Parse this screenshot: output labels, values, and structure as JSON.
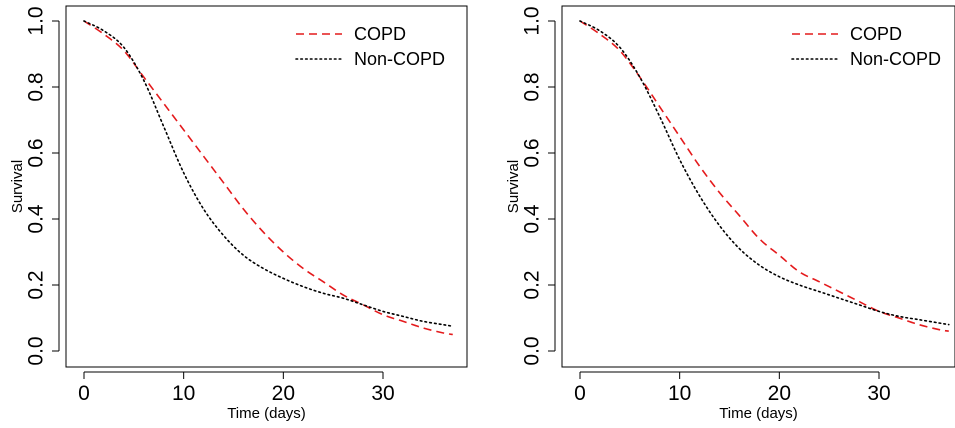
{
  "colors": {
    "copd": "#e41a1c",
    "non_copd": "#000000",
    "axis": "#000000"
  },
  "chart_data": [
    {
      "type": "line",
      "xlabel": "Time (days)",
      "ylabel": "Survival",
      "xlim": [
        0,
        37
      ],
      "ylim": [
        0,
        1
      ],
      "xticks": [
        "0",
        "10",
        "20",
        "30"
      ],
      "yticks": [
        "0.0",
        "0.2",
        "0.4",
        "0.6",
        "0.8",
        "1.0"
      ],
      "legend_placement": "top-right",
      "series": [
        {
          "name": "COPD",
          "style": "dashed",
          "x": [
            0,
            2,
            4,
            6,
            8,
            10,
            12,
            14,
            16,
            18,
            20,
            22,
            24,
            26,
            28,
            30,
            32,
            34,
            36,
            37
          ],
          "y": [
            1.0,
            0.96,
            0.91,
            0.83,
            0.75,
            0.67,
            0.59,
            0.51,
            0.43,
            0.36,
            0.3,
            0.25,
            0.21,
            0.17,
            0.14,
            0.11,
            0.09,
            0.07,
            0.055,
            0.05
          ]
        },
        {
          "name": "Non-COPD",
          "style": "dotted",
          "x": [
            0,
            2,
            4,
            6,
            8,
            10,
            12,
            14,
            16,
            18,
            20,
            22,
            24,
            26,
            28,
            30,
            32,
            34,
            36,
            37
          ],
          "y": [
            1.0,
            0.97,
            0.92,
            0.82,
            0.68,
            0.54,
            0.43,
            0.35,
            0.29,
            0.25,
            0.22,
            0.195,
            0.175,
            0.16,
            0.14,
            0.12,
            0.105,
            0.09,
            0.08,
            0.075
          ]
        }
      ]
    },
    {
      "type": "line",
      "xlabel": "Time (days)",
      "ylabel": "Survival",
      "xlim": [
        0,
        37
      ],
      "ylim": [
        0,
        1
      ],
      "xticks": [
        "0",
        "10",
        "20",
        "30"
      ],
      "yticks": [
        "0.0",
        "0.2",
        "0.4",
        "0.6",
        "0.8",
        "1.0"
      ],
      "legend_placement": "top-right",
      "series": [
        {
          "name": "COPD",
          "style": "dashed",
          "x": [
            0,
            2,
            4,
            6,
            8,
            10,
            12,
            14,
            16,
            18,
            20,
            22,
            24,
            26,
            28,
            30,
            32,
            34,
            36,
            37
          ],
          "y": [
            1.0,
            0.96,
            0.91,
            0.83,
            0.74,
            0.65,
            0.56,
            0.48,
            0.41,
            0.34,
            0.29,
            0.24,
            0.21,
            0.18,
            0.15,
            0.12,
            0.1,
            0.08,
            0.065,
            0.06
          ]
        },
        {
          "name": "Non-COPD",
          "style": "dotted",
          "x": [
            0,
            2,
            4,
            6,
            8,
            10,
            12,
            14,
            16,
            18,
            20,
            22,
            24,
            26,
            28,
            30,
            32,
            34,
            36,
            37
          ],
          "y": [
            1.0,
            0.97,
            0.92,
            0.83,
            0.71,
            0.58,
            0.47,
            0.38,
            0.31,
            0.26,
            0.225,
            0.2,
            0.18,
            0.16,
            0.14,
            0.12,
            0.105,
            0.095,
            0.085,
            0.08
          ]
        }
      ]
    }
  ]
}
